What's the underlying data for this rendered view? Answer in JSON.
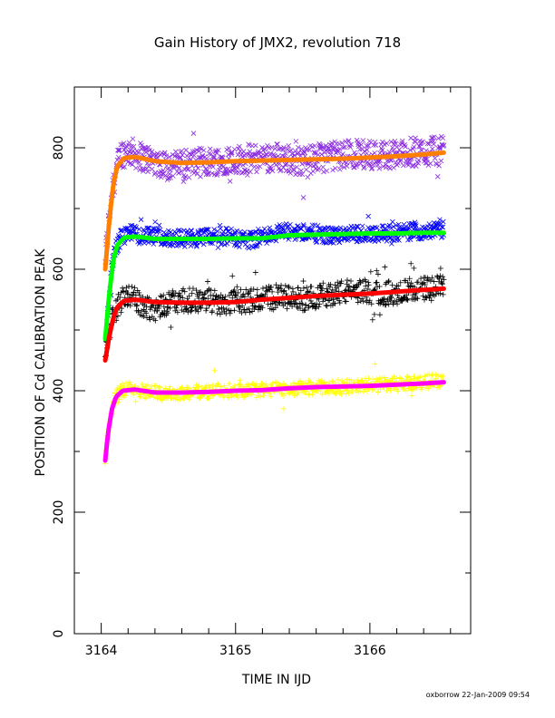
{
  "chart_data": {
    "type": "scatter",
    "title": "Gain History of JMX2, revolution 718",
    "xlabel": "TIME IN IJD",
    "ylabel": "POSITION OF Cd CALIBRATION PEAK",
    "xlim": [
      3163.8,
      3166.75
    ],
    "ylim": [
      0,
      900
    ],
    "x_ticks": [
      3164,
      3165,
      3166
    ],
    "y_ticks": [
      0,
      200,
      400,
      600,
      800
    ],
    "x_minor_step": 0.2,
    "y_minor_step": 100,
    "grid": false,
    "legend": "none",
    "series": [
      {
        "marker": "x",
        "color": "#8a2be2",
        "fit_color": "#ff8000",
        "points": [
          [
            3164.03,
            620
          ],
          [
            3164.05,
            665
          ],
          [
            3164.07,
            710
          ],
          [
            3164.09,
            745
          ],
          [
            3164.12,
            772
          ],
          [
            3164.15,
            790
          ],
          [
            3164.2,
            795
          ],
          [
            3164.3,
            785
          ],
          [
            3164.4,
            778
          ],
          [
            3164.5,
            770
          ],
          [
            3164.7,
            775
          ],
          [
            3164.9,
            780
          ],
          [
            3165.1,
            782
          ],
          [
            3165.3,
            785
          ],
          [
            3165.5,
            778
          ],
          [
            3165.7,
            786
          ],
          [
            3165.9,
            790
          ],
          [
            3166.1,
            788
          ],
          [
            3166.3,
            792
          ],
          [
            3166.55,
            795
          ]
        ],
        "fit": [
          [
            3164.03,
            600
          ],
          [
            3164.06,
            680
          ],
          [
            3164.09,
            740
          ],
          [
            3164.12,
            770
          ],
          [
            3164.17,
            783
          ],
          [
            3164.25,
            785
          ],
          [
            3164.4,
            778
          ],
          [
            3164.6,
            775
          ],
          [
            3164.8,
            776
          ],
          [
            3165.0,
            778
          ],
          [
            3165.2,
            779
          ],
          [
            3165.4,
            780
          ],
          [
            3165.6,
            781
          ],
          [
            3165.8,
            782
          ],
          [
            3166.0,
            784
          ],
          [
            3166.2,
            786
          ],
          [
            3166.4,
            789
          ],
          [
            3166.55,
            792
          ]
        ],
        "scatter_spread": 24
      },
      {
        "marker": "x",
        "color": "#0000ff",
        "fit_color": "#00ff00",
        "points": [
          [
            3164.04,
            500
          ],
          [
            3164.06,
            560
          ],
          [
            3164.08,
            605
          ],
          [
            3164.1,
            630
          ],
          [
            3164.14,
            650
          ],
          [
            3164.2,
            660
          ],
          [
            3164.3,
            655
          ],
          [
            3164.5,
            652
          ],
          [
            3164.7,
            650
          ],
          [
            3164.9,
            655
          ],
          [
            3165.1,
            648
          ],
          [
            3165.3,
            660
          ],
          [
            3165.5,
            662
          ],
          [
            3165.7,
            655
          ],
          [
            3165.9,
            658
          ],
          [
            3166.1,
            660
          ],
          [
            3166.3,
            662
          ],
          [
            3166.55,
            665
          ]
        ],
        "fit": [
          [
            3164.03,
            485
          ],
          [
            3164.06,
            560
          ],
          [
            3164.09,
            615
          ],
          [
            3164.12,
            640
          ],
          [
            3164.17,
            652
          ],
          [
            3164.25,
            654
          ],
          [
            3164.4,
            650
          ],
          [
            3164.6,
            650
          ],
          [
            3164.8,
            650
          ],
          [
            3165.0,
            651
          ],
          [
            3165.2,
            651
          ],
          [
            3165.4,
            656
          ],
          [
            3165.6,
            657
          ],
          [
            3165.8,
            658
          ],
          [
            3166.0,
            659
          ],
          [
            3166.2,
            659
          ],
          [
            3166.4,
            660
          ],
          [
            3166.55,
            660
          ]
        ],
        "scatter_spread": 14
      },
      {
        "marker": "+",
        "color": "#000000",
        "fit_color": "#ff0000",
        "points": [
          [
            3164.03,
            455
          ],
          [
            3164.06,
            500
          ],
          [
            3164.1,
            530
          ],
          [
            3164.15,
            550
          ],
          [
            3164.2,
            560
          ],
          [
            3164.3,
            540
          ],
          [
            3164.4,
            535
          ],
          [
            3164.5,
            545
          ],
          [
            3164.7,
            550
          ],
          [
            3164.9,
            545
          ],
          [
            3165.1,
            548
          ],
          [
            3165.3,
            555
          ],
          [
            3165.5,
            550
          ],
          [
            3165.7,
            560
          ],
          [
            3165.9,
            565
          ],
          [
            3166.1,
            560
          ],
          [
            3166.3,
            565
          ],
          [
            3166.55,
            570
          ]
        ],
        "fit": [
          [
            3164.03,
            450
          ],
          [
            3164.06,
            490
          ],
          [
            3164.09,
            520
          ],
          [
            3164.12,
            538
          ],
          [
            3164.17,
            548
          ],
          [
            3164.25,
            550
          ],
          [
            3164.4,
            546
          ],
          [
            3164.6,
            545
          ],
          [
            3164.8,
            545
          ],
          [
            3165.0,
            546
          ],
          [
            3165.2,
            550
          ],
          [
            3165.4,
            553
          ],
          [
            3165.6,
            556
          ],
          [
            3165.8,
            558
          ],
          [
            3166.0,
            560
          ],
          [
            3166.2,
            563
          ],
          [
            3166.4,
            566
          ],
          [
            3166.55,
            568
          ]
        ],
        "scatter_spread": 20
      },
      {
        "marker": "+",
        "color": "#ffff00",
        "fit_color": "#ff00ff",
        "points": [
          [
            3164.03,
            290
          ],
          [
            3164.05,
            330
          ],
          [
            3164.08,
            370
          ],
          [
            3164.12,
            395
          ],
          [
            3164.2,
            405
          ],
          [
            3164.3,
            400
          ],
          [
            3164.5,
            395
          ],
          [
            3164.7,
            398
          ],
          [
            3164.9,
            400
          ],
          [
            3165.1,
            400
          ],
          [
            3165.3,
            402
          ],
          [
            3165.5,
            405
          ],
          [
            3165.7,
            405
          ],
          [
            3165.9,
            408
          ],
          [
            3166.1,
            410
          ],
          [
            3166.3,
            412
          ],
          [
            3166.55,
            418
          ]
        ],
        "fit": [
          [
            3164.03,
            285
          ],
          [
            3164.05,
            330
          ],
          [
            3164.08,
            370
          ],
          [
            3164.11,
            390
          ],
          [
            3164.16,
            400
          ],
          [
            3164.25,
            402
          ],
          [
            3164.4,
            397
          ],
          [
            3164.6,
            397
          ],
          [
            3164.8,
            398
          ],
          [
            3165.0,
            400
          ],
          [
            3165.2,
            401
          ],
          [
            3165.4,
            404
          ],
          [
            3165.6,
            406
          ],
          [
            3165.8,
            407
          ],
          [
            3166.0,
            408
          ],
          [
            3166.2,
            410
          ],
          [
            3166.4,
            412
          ],
          [
            3166.55,
            414
          ]
        ],
        "scatter_spread": 12
      }
    ]
  },
  "footer": {
    "credit": "oxborrow 22-Jan-2009 09:54"
  }
}
